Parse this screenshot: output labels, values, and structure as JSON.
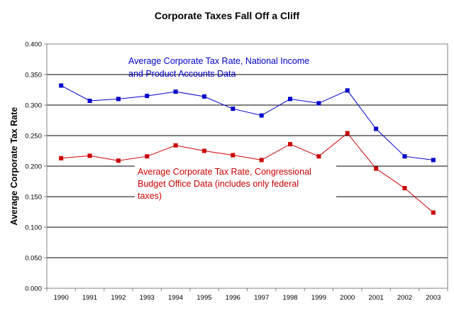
{
  "chart_data": {
    "type": "line",
    "title": "Corporate Taxes Fall Off a Cliff",
    "xlabel": "",
    "ylabel": "Average Corporate Tax Rate",
    "categories": [
      "1990",
      "1991",
      "1992",
      "1993",
      "1994",
      "1995",
      "1996",
      "1997",
      "1998",
      "1999",
      "2000",
      "2001",
      "2002",
      "2003"
    ],
    "ylim": [
      0,
      0.4
    ],
    "yticks": [
      "0.000",
      "0.050",
      "0.100",
      "0.150",
      "0.200",
      "0.250",
      "0.300",
      "0.350",
      "0.400"
    ],
    "grid": true,
    "series": [
      {
        "name": "Average Corporate Tax Rate, National Income and Product Accounts Data",
        "label_lines": [
          "Average Corporate Tax Rate, National Income",
          "and Product Accounts Data"
        ],
        "color": "#0000cc",
        "values": [
          0.332,
          0.307,
          0.31,
          0.315,
          0.322,
          0.314,
          0.294,
          0.283,
          0.31,
          0.303,
          0.324,
          0.261,
          0.216,
          0.21
        ]
      },
      {
        "name": "Average Corporate Tax Rate, Congressional Budget Office Data (includes only federal taxes)",
        "label_lines": [
          "Average Corporate Tax Rate, Congressional",
          "Budget Office Data (includes only federal",
          "taxes)"
        ],
        "color": "#cc0000",
        "values": [
          0.213,
          0.217,
          0.209,
          0.216,
          0.234,
          0.225,
          0.218,
          0.21,
          0.236,
          0.216,
          0.254,
          0.196,
          0.164,
          0.124
        ]
      }
    ]
  }
}
